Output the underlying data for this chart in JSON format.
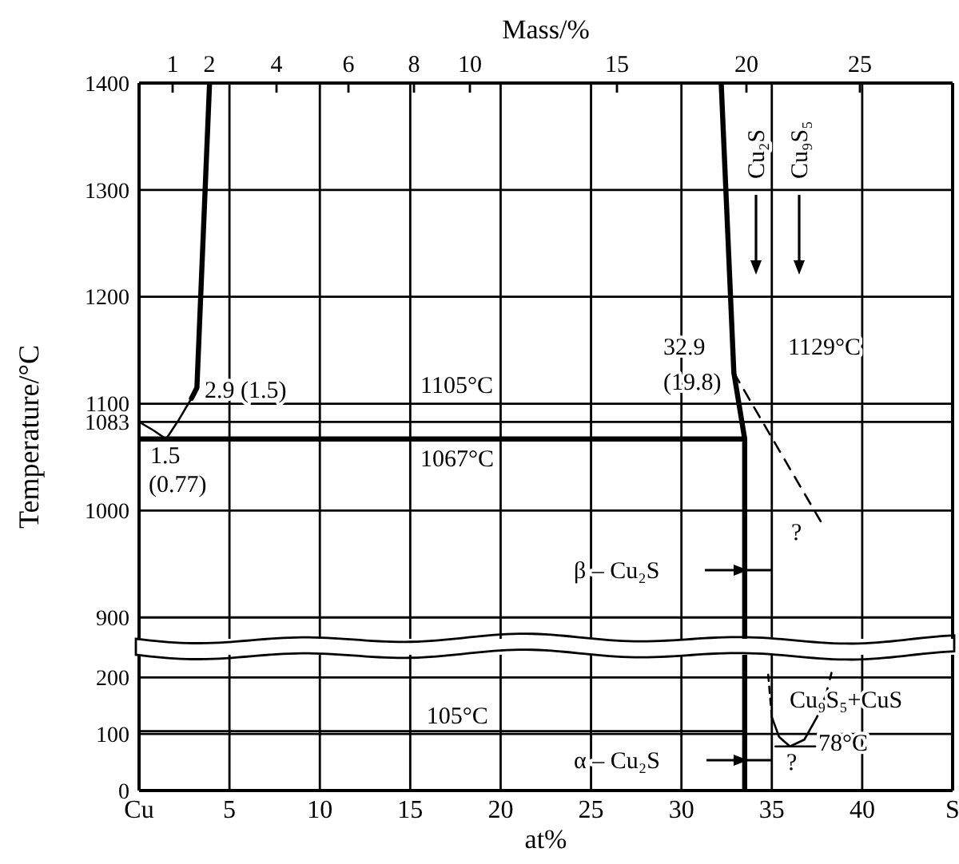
{
  "chart_data": [
    {
      "type": "line",
      "ylabel": "Temperature/°C",
      "x2label": "Mass/%",
      "xlim": [
        0,
        45
      ],
      "ylim": [
        880,
        1400
      ],
      "yticks": [
        900,
        1000,
        1083,
        1100,
        1200,
        1300,
        1400
      ],
      "xticks": [
        0,
        5,
        10,
        15,
        20,
        25,
        30,
        35,
        40
      ],
      "tick_labels": "y",
      "grid": true,
      "series": [
        {
          "color": "#000000",
          "x": [
            0,
            0.8,
            1.5,
            2.2,
            2.9
          ],
          "values": [
            1083,
            1075,
            1067,
            1085,
            1105
          ]
        },
        {
          "color": "#000000",
          "x": [
            2.9,
            3.2,
            3.9
          ],
          "values": [
            1105,
            1115,
            1400
          ]
        },
        {
          "color": "#000000",
          "x": [
            0,
            33.5
          ],
          "values": [
            1067,
            1067
          ]
        },
        {
          "color": "#000000",
          "x": [
            32.2,
            32.9,
            33.5,
            33.5
          ],
          "values": [
            1400,
            1129,
            1067,
            880
          ]
        },
        {
          "color": "#000000",
          "line_style": "dashed",
          "x": [
            32.9,
            37.7
          ],
          "values": [
            1129,
            990
          ]
        }
      ],
      "annotations": [
        "1105°C",
        "1067°C",
        "2.9 (1.5)",
        "1.5",
        "(0.77)",
        "32.9",
        "(19.8)",
        "1129°C",
        "Cu₂S",
        "Cu₉S₅",
        "β – Cu₂S",
        "?",
        "1",
        "2",
        "4",
        "6",
        "8",
        "10",
        "15",
        "20",
        "25"
      ]
    },
    {
      "type": "line",
      "xlabel": "at%",
      "xlim": [
        0,
        45
      ],
      "ylim": [
        0,
        240
      ],
      "yticks": [
        0,
        100,
        200
      ],
      "xticks": [
        {
          "value": 0,
          "label": "Cu"
        },
        5,
        10,
        15,
        20,
        25,
        30,
        35,
        40,
        {
          "value": 45,
          "label": "S"
        }
      ],
      "grid": true,
      "series": [
        {
          "color": "#000000",
          "x": [
            0,
            33.5
          ],
          "values": [
            105,
            105
          ]
        },
        {
          "color": "#000000",
          "x": [
            33.5,
            33.5
          ],
          "values": [
            0,
            240
          ]
        },
        {
          "color": "#000000",
          "line_style": "dashed",
          "x": [
            34.8,
            35.0
          ],
          "values": [
            205,
            130
          ]
        },
        {
          "color": "#000000",
          "x": [
            35.0,
            35.4,
            36.0,
            36.8,
            37.5,
            38.0
          ],
          "values": [
            130,
            95,
            78,
            90,
            130,
            170
          ]
        },
        {
          "color": "#000000",
          "line_style": "dashed",
          "x": [
            38.0,
            38.3
          ],
          "values": [
            170,
            208
          ]
        },
        {
          "color": "#000000",
          "x": [
            35.2,
            37.4
          ],
          "values": [
            78,
            78
          ]
        }
      ],
      "annotations": [
        {
          "text": "105°C",
          "x": 15.9,
          "y": 119
        },
        "Cu₉S₅+CuS",
        "78°C",
        "α – Cu₂S",
        "?"
      ]
    }
  ]
}
